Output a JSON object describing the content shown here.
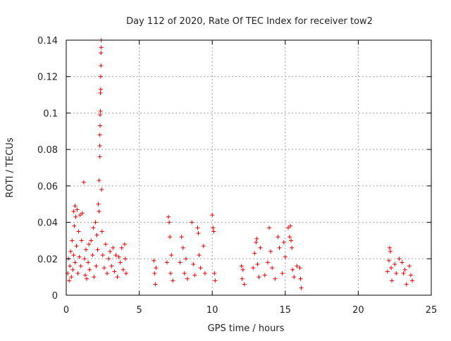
{
  "chart_data": {
    "type": "scatter",
    "title": "Day 112 of 2020, Rate Of TEC Index for receiver tow2",
    "xlabel": "GPS time / hours",
    "ylabel": "ROTI / TECUs",
    "xlim": [
      0,
      25
    ],
    "ylim": [
      0,
      0.14
    ],
    "x_ticks": [
      0,
      5,
      10,
      15,
      20,
      25
    ],
    "y_ticks": [
      0,
      0.02,
      0.04,
      0.06,
      0.08,
      0.1,
      0.12,
      0.14
    ],
    "x_tick_labels": [
      "0",
      "5",
      "10",
      "15",
      "20",
      "25"
    ],
    "y_tick_labels": [
      "0",
      "0.02",
      "0.04",
      "0.06",
      "0.08",
      "0.1",
      "0.12",
      "0.14"
    ],
    "grid": true,
    "marker": "+",
    "series": [
      {
        "name": "ROTI",
        "color": "#e60000",
        "points": [
          [
            0.1,
            0.012
          ],
          [
            0.15,
            0.02
          ],
          [
            0.2,
            0.008
          ],
          [
            0.25,
            0.016
          ],
          [
            0.3,
            0.024
          ],
          [
            0.35,
            0.01
          ],
          [
            0.4,
            0.03
          ],
          [
            0.45,
            0.014
          ],
          [
            0.5,
            0.046
          ],
          [
            0.5,
            0.022
          ],
          [
            0.55,
            0.038
          ],
          [
            0.6,
            0.049
          ],
          [
            0.6,
            0.018
          ],
          [
            0.65,
            0.043
          ],
          [
            0.7,
            0.027
          ],
          [
            0.75,
            0.047
          ],
          [
            0.8,
            0.012
          ],
          [
            0.85,
            0.035
          ],
          [
            0.9,
            0.021
          ],
          [
            0.95,
            0.044
          ],
          [
            1.0,
            0.016
          ],
          [
            1.05,
            0.03
          ],
          [
            1.1,
            0.045
          ],
          [
            1.2,
            0.062
          ],
          [
            1.25,
            0.02
          ],
          [
            1.3,
            0.011
          ],
          [
            1.35,
            0.025
          ],
          [
            1.4,
            0.009
          ],
          [
            1.5,
            0.018
          ],
          [
            1.55,
            0.028
          ],
          [
            1.6,
            0.014
          ],
          [
            1.7,
            0.03
          ],
          [
            1.8,
            0.022
          ],
          [
            1.85,
            0.037
          ],
          [
            1.9,
            0.01
          ],
          [
            2.0,
            0.04
          ],
          [
            2.05,
            0.016
          ],
          [
            2.1,
            0.033
          ],
          [
            2.15,
            0.025
          ],
          [
            2.2,
            0.05
          ],
          [
            2.25,
            0.046
          ],
          [
            2.25,
            0.063
          ],
          [
            2.3,
            0.076
          ],
          [
            2.3,
            0.082
          ],
          [
            2.3,
            0.088
          ],
          [
            2.32,
            0.093
          ],
          [
            2.32,
            0.099
          ],
          [
            2.34,
            0.101
          ],
          [
            2.34,
            0.111
          ],
          [
            2.36,
            0.113
          ],
          [
            2.36,
            0.12
          ],
          [
            2.38,
            0.126
          ],
          [
            2.38,
            0.133
          ],
          [
            2.4,
            0.136
          ],
          [
            2.4,
            0.14
          ],
          [
            2.42,
            0.058
          ],
          [
            2.45,
            0.035
          ],
          [
            2.5,
            0.022
          ],
          [
            2.6,
            0.015
          ],
          [
            2.7,
            0.028
          ],
          [
            2.8,
            0.012
          ],
          [
            2.9,
            0.02
          ],
          [
            3.0,
            0.024
          ],
          [
            3.1,
            0.016
          ],
          [
            3.2,
            0.026
          ],
          [
            3.3,
            0.013
          ],
          [
            3.4,
            0.022
          ],
          [
            3.5,
            0.01
          ],
          [
            3.6,
            0.021
          ],
          [
            3.7,
            0.018
          ],
          [
            3.8,
            0.026
          ],
          [
            3.9,
            0.014
          ],
          [
            4.0,
            0.028
          ],
          [
            4.05,
            0.02
          ],
          [
            4.1,
            0.012
          ],
          [
            6.0,
            0.019
          ],
          [
            6.05,
            0.012
          ],
          [
            6.1,
            0.006
          ],
          [
            6.15,
            0.015
          ],
          [
            6.9,
            0.018
          ],
          [
            7.0,
            0.043
          ],
          [
            7.05,
            0.04
          ],
          [
            7.1,
            0.032
          ],
          [
            7.15,
            0.012
          ],
          [
            7.2,
            0.022
          ],
          [
            7.3,
            0.008
          ],
          [
            7.8,
            0.018
          ],
          [
            7.9,
            0.032
          ],
          [
            8.0,
            0.026
          ],
          [
            8.1,
            0.012
          ],
          [
            8.2,
            0.02
          ],
          [
            8.3,
            0.009
          ],
          [
            8.6,
            0.04
          ],
          [
            8.7,
            0.017
          ],
          [
            8.8,
            0.011
          ],
          [
            9.0,
            0.037
          ],
          [
            9.05,
            0.034
          ],
          [
            9.1,
            0.022
          ],
          [
            9.2,
            0.015
          ],
          [
            9.4,
            0.027
          ],
          [
            9.5,
            0.012
          ],
          [
            10.0,
            0.044
          ],
          [
            10.05,
            0.037
          ],
          [
            10.1,
            0.035
          ],
          [
            10.15,
            0.012
          ],
          [
            10.2,
            0.008
          ],
          [
            12.0,
            0.016
          ],
          [
            12.05,
            0.009
          ],
          [
            12.1,
            0.014
          ],
          [
            12.2,
            0.006
          ],
          [
            12.8,
            0.015
          ],
          [
            12.9,
            0.023
          ],
          [
            13.0,
            0.029
          ],
          [
            13.05,
            0.031
          ],
          [
            13.1,
            0.017
          ],
          [
            13.2,
            0.01
          ],
          [
            13.3,
            0.026
          ],
          [
            13.6,
            0.011
          ],
          [
            13.8,
            0.018
          ],
          [
            13.9,
            0.037
          ],
          [
            14.0,
            0.024
          ],
          [
            14.1,
            0.015
          ],
          [
            14.3,
            0.009
          ],
          [
            14.5,
            0.032
          ],
          [
            14.6,
            0.026
          ],
          [
            14.8,
            0.012
          ],
          [
            14.9,
            0.029
          ],
          [
            15.0,
            0.021
          ],
          [
            15.2,
            0.037
          ],
          [
            15.3,
            0.032
          ],
          [
            15.35,
            0.038
          ],
          [
            15.4,
            0.03
          ],
          [
            15.45,
            0.026
          ],
          [
            15.5,
            0.014
          ],
          [
            15.6,
            0.01
          ],
          [
            15.8,
            0.016
          ],
          [
            16.0,
            0.015
          ],
          [
            16.05,
            0.009
          ],
          [
            16.1,
            0.004
          ],
          [
            22.0,
            0.013
          ],
          [
            22.1,
            0.019
          ],
          [
            22.15,
            0.026
          ],
          [
            22.2,
            0.024
          ],
          [
            22.25,
            0.015
          ],
          [
            22.3,
            0.008
          ],
          [
            22.5,
            0.017
          ],
          [
            22.6,
            0.012
          ],
          [
            22.8,
            0.02
          ],
          [
            23.0,
            0.018
          ],
          [
            23.1,
            0.012
          ],
          [
            23.2,
            0.014
          ],
          [
            23.3,
            0.006
          ],
          [
            23.5,
            0.016
          ],
          [
            23.6,
            0.011
          ],
          [
            23.7,
            0.008
          ]
        ]
      }
    ]
  }
}
